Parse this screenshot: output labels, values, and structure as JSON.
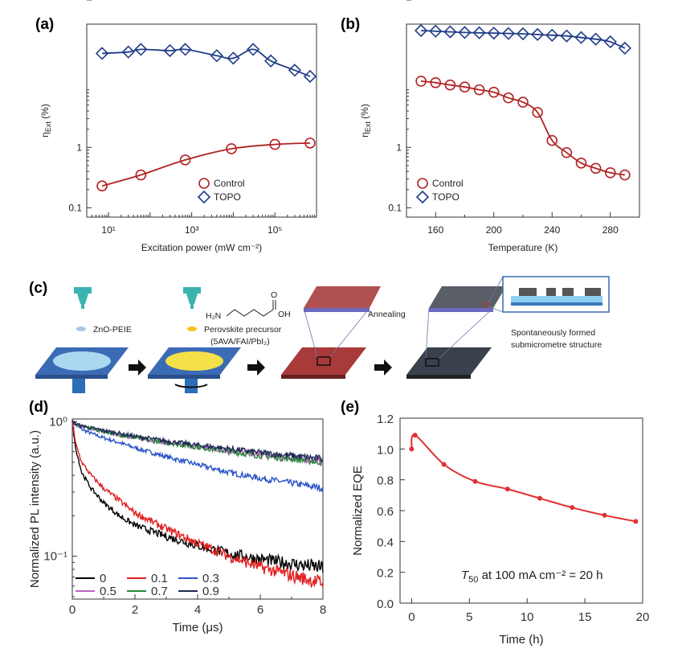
{
  "panels": {
    "a": "(a)",
    "b": "(b)",
    "c": "(c)",
    "d": "(d)",
    "e": "(e)"
  },
  "colors": {
    "control": "#b22222",
    "topo": "#1f3c88",
    "line_e": "#e03030"
  },
  "schematic": {
    "zno_label": "ZnO-PEIE",
    "precursor_label": "Perovskite precursor",
    "precursor_formula": "(5AVA/FAI/PbI₂)",
    "molecule_n": "H₂N",
    "molecule_oh": "OH",
    "molecule_o": "O",
    "annealing_label": "Annealing",
    "structure_label_1": "Spontaneously formed",
    "structure_label_2": "submicrometre structure"
  },
  "chart_data": [
    {
      "type": "line",
      "panel": "(a)",
      "xlabel": "Excitation power (mW cm⁻²)",
      "ylabel": "ηExt (%)",
      "xscale": "log",
      "yscale": "log",
      "xlim": [
        3,
        1000000
      ],
      "ylim": [
        0.07,
        110
      ],
      "xticks": [
        "10¹",
        "10³",
        "10⁵"
      ],
      "yticks": [
        "0.1",
        "1",
        "10",
        "100"
      ],
      "legend": "bottom-right",
      "series": [
        {
          "name": "Control",
          "marker": "circle",
          "x": [
            7,
            60,
            700,
            9000,
            100000,
            700000
          ],
          "y": [
            0.23,
            0.35,
            0.62,
            0.95,
            1.12,
            1.18
          ]
        },
        {
          "name": "TOPO",
          "marker": "diamond",
          "x": [
            7,
            30,
            60,
            300,
            700,
            4000,
            10000,
            30000,
            80000,
            300000,
            700000
          ],
          "y": [
            36,
            38,
            42,
            40,
            42,
            33,
            30,
            42,
            27,
            19,
            15
          ]
        }
      ]
    },
    {
      "type": "line",
      "panel": "(b)",
      "xlabel": "Temperature (K)",
      "ylabel": "ηExt (%)",
      "xscale": "linear",
      "yscale": "log",
      "xlim": [
        140,
        300
      ],
      "ylim": [
        0.07,
        110
      ],
      "xticks": [
        "160",
        "200",
        "240",
        "280"
      ],
      "yticks": [
        "0.1",
        "1",
        "10",
        "100"
      ],
      "legend": "bottom-left",
      "series": [
        {
          "name": "Control",
          "marker": "circle",
          "x": [
            150,
            160,
            170,
            180,
            190,
            200,
            210,
            220,
            230,
            240,
            250,
            260,
            270,
            280,
            290
          ],
          "y": [
            12.5,
            11.8,
            10.8,
            10,
            9,
            8.2,
            6.6,
            5.6,
            3.8,
            1.3,
            0.82,
            0.55,
            0.45,
            0.38,
            0.35
          ]
        },
        {
          "name": "TOPO",
          "marker": "diamond",
          "x": [
            150,
            160,
            170,
            180,
            190,
            200,
            210,
            220,
            230,
            240,
            250,
            260,
            270,
            280,
            290
          ],
          "y": [
            86,
            84,
            82,
            80,
            79,
            78,
            77,
            76,
            74,
            72,
            70,
            66,
            62,
            56,
            44
          ]
        }
      ]
    },
    {
      "type": "line",
      "panel": "(d)",
      "xlabel": "Time (μs)",
      "ylabel": "Normalized PL intensity (a.u.)",
      "xscale": "linear",
      "yscale": "log",
      "xlim": [
        0,
        8
      ],
      "ylim": [
        0.048,
        1.05
      ],
      "xticks": [
        "0",
        "2",
        "4",
        "6",
        "8"
      ],
      "yticks": [
        "10⁻¹",
        "10⁰"
      ],
      "legend": "bottom-left",
      "x": [
        0,
        0.1,
        0.3,
        0.6,
        1,
        1.5,
        2,
        3,
        4,
        5,
        6,
        7,
        8
      ],
      "series": [
        {
          "name": "0",
          "color": "#000000",
          "y": [
            1.0,
            0.65,
            0.42,
            0.32,
            0.25,
            0.2,
            0.17,
            0.14,
            0.12,
            0.105,
            0.095,
            0.088,
            0.082
          ]
        },
        {
          "name": "0.1",
          "color": "#e02020",
          "y": [
            1.0,
            0.7,
            0.5,
            0.4,
            0.32,
            0.26,
            0.21,
            0.16,
            0.125,
            0.1,
            0.083,
            0.072,
            0.063
          ]
        },
        {
          "name": "0.3",
          "color": "#2a55c8",
          "y": [
            1.0,
            0.95,
            0.88,
            0.82,
            0.76,
            0.7,
            0.64,
            0.55,
            0.48,
            0.42,
            0.38,
            0.35,
            0.32
          ]
        },
        {
          "name": "0.5",
          "color": "#c060c0",
          "y": [
            1.0,
            0.97,
            0.93,
            0.89,
            0.85,
            0.8,
            0.76,
            0.7,
            0.65,
            0.61,
            0.57,
            0.54,
            0.51
          ]
        },
        {
          "name": "0.7",
          "color": "#2a8a3a",
          "y": [
            1.0,
            0.97,
            0.93,
            0.89,
            0.85,
            0.8,
            0.76,
            0.7,
            0.65,
            0.6,
            0.56,
            0.53,
            0.5
          ]
        },
        {
          "name": "0.9",
          "color": "#1e2a55",
          "y": [
            1.0,
            0.97,
            0.93,
            0.9,
            0.86,
            0.82,
            0.78,
            0.72,
            0.67,
            0.63,
            0.59,
            0.56,
            0.53
          ]
        }
      ]
    },
    {
      "type": "line",
      "panel": "(e)",
      "xlabel": "Time (h)",
      "ylabel": "Normalized EQE",
      "xlim": [
        -1,
        20
      ],
      "ylim": [
        0,
        1.2
      ],
      "xticks": [
        "0",
        "5",
        "10",
        "15",
        "20"
      ],
      "yticks": [
        "0.0",
        "0.2",
        "0.4",
        "0.6",
        "0.8",
        "1.0",
        "1.2"
      ],
      "annotation": "T50 at 100 mA cm⁻² = 20 h",
      "series": [
        {
          "name": "",
          "x": [
            0,
            0.3,
            2.8,
            5.5,
            8.3,
            11.1,
            13.9,
            16.7,
            19.4
          ],
          "y": [
            1.0,
            1.09,
            0.9,
            0.79,
            0.74,
            0.68,
            0.62,
            0.57,
            0.53
          ]
        }
      ]
    }
  ]
}
